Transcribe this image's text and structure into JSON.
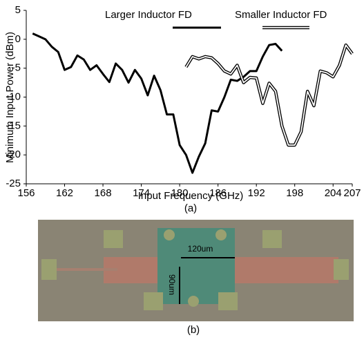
{
  "chart_data": {
    "type": "line",
    "caption": "(a)",
    "xlabel": "Input Frequency (GHz)",
    "ylabel": "Minimum Input Power (dBm)",
    "xlim": [
      156,
      207
    ],
    "xticks": [
      156,
      162,
      168,
      174,
      180,
      186,
      192,
      198,
      204,
      207
    ],
    "ylim": [
      -25,
      5
    ],
    "yticks": [
      5,
      0,
      -5,
      -10,
      -15,
      -20,
      -25
    ],
    "grid": false,
    "series": [
      {
        "name": "Larger Inductor FD",
        "color": "#000000",
        "style": "thick",
        "x": [
          157,
          158,
          159,
          160,
          161,
          162,
          163,
          164,
          165,
          166,
          167,
          168,
          169,
          170,
          171,
          172,
          173,
          174,
          175,
          176,
          177,
          178,
          179,
          180,
          181,
          182,
          183,
          184,
          185,
          186,
          187,
          188,
          189,
          190,
          191,
          192,
          193,
          194,
          195,
          196
        ],
        "values": [
          1,
          0.5,
          0,
          -1.3,
          -2.2,
          -5.3,
          -4.8,
          -2.8,
          -3.5,
          -5.3,
          -4.5,
          -6,
          -7.4,
          -4.2,
          -5.3,
          -7.5,
          -5.3,
          -6.8,
          -9.7,
          -6.3,
          -8.8,
          -13,
          -13,
          -18.3,
          -20,
          -23.1,
          -20.3,
          -18,
          -12.3,
          -12.5,
          -10,
          -7,
          -7.2,
          -6.5,
          -5.5,
          -5.5,
          -3,
          -1,
          -0.8,
          -2
        ]
      },
      {
        "name": "Smaller Inductor FD",
        "color": "#000000",
        "style": "double",
        "x": [
          181,
          182,
          183,
          184,
          185,
          186,
          187,
          188,
          189,
          190,
          191,
          192,
          193,
          194,
          195,
          196,
          197,
          198,
          199,
          200,
          201,
          202,
          203,
          204,
          205,
          206,
          207
        ],
        "values": [
          -4.8,
          -3,
          -3.4,
          -3,
          -3.2,
          -4.2,
          -5.5,
          -6,
          -4.5,
          -7.5,
          -6.6,
          -6.7,
          -11.1,
          -7.6,
          -9,
          -15,
          -18.3,
          -18.3,
          -16,
          -9,
          -11.5,
          -5.5,
          -5.8,
          -6.5,
          -4.5,
          -1,
          -2.5
        ]
      }
    ]
  },
  "figure_b": {
    "labels": [
      "120um",
      "90um"
    ],
    "caption": "(b)"
  }
}
